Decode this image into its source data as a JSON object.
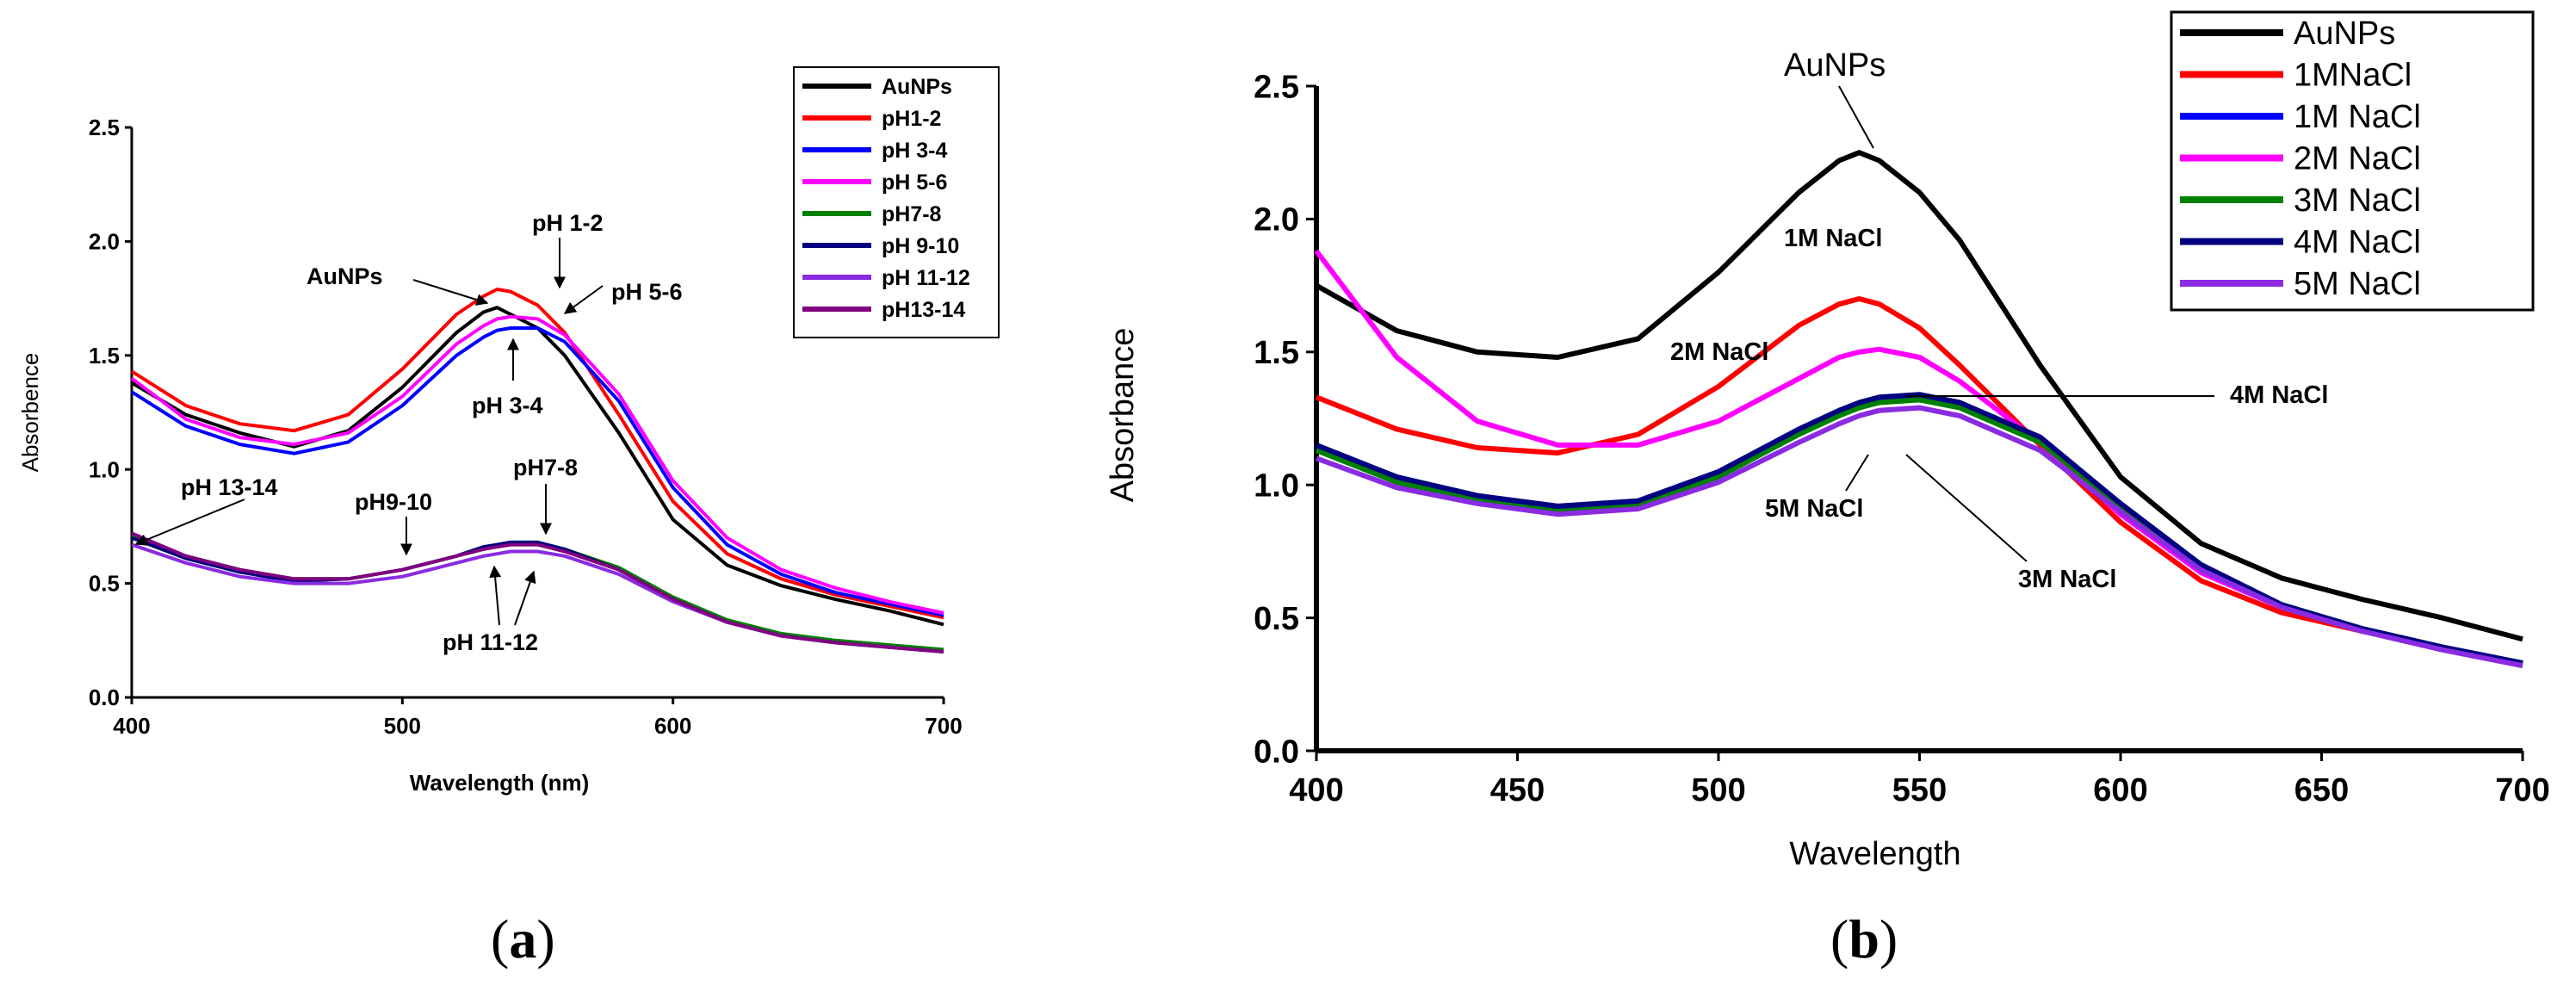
{
  "chart_data": [
    {
      "panel": "a",
      "type": "line",
      "title": "",
      "xlabel": "Wavelength (nm)",
      "ylabel": "Absorbence",
      "xlim": [
        400,
        700
      ],
      "ylim": [
        0.0,
        2.5
      ],
      "xticks": [
        "400",
        "500",
        "600",
        "700"
      ],
      "yticks": [
        "0.0",
        "0.5",
        "1.0",
        "1.5",
        "2.0",
        "2.5"
      ],
      "legend_position": "top-right",
      "x": [
        400,
        420,
        440,
        460,
        480,
        500,
        520,
        530,
        535,
        540,
        550,
        560,
        580,
        600,
        620,
        640,
        660,
        680,
        700
      ],
      "series": [
        {
          "name": "AuNPs",
          "color": "#000000",
          "values": [
            1.38,
            1.24,
            1.16,
            1.1,
            1.17,
            1.36,
            1.6,
            1.69,
            1.71,
            1.68,
            1.62,
            1.5,
            1.16,
            0.78,
            0.58,
            0.49,
            0.43,
            0.38,
            0.32
          ]
        },
        {
          "name": "pH1-2",
          "color": "#ff0000",
          "values": [
            1.43,
            1.28,
            1.2,
            1.17,
            1.24,
            1.44,
            1.68,
            1.76,
            1.79,
            1.78,
            1.72,
            1.6,
            1.24,
            0.86,
            0.63,
            0.52,
            0.45,
            0.4,
            0.35
          ]
        },
        {
          "name": "pH 3-4",
          "color": "#0000ff",
          "values": [
            1.34,
            1.19,
            1.11,
            1.07,
            1.12,
            1.28,
            1.5,
            1.58,
            1.61,
            1.62,
            1.62,
            1.56,
            1.3,
            0.92,
            0.67,
            0.54,
            0.46,
            0.41,
            0.36
          ]
        },
        {
          "name": "pH 5-6",
          "color": "#ff00ff",
          "values": [
            1.4,
            1.22,
            1.14,
            1.11,
            1.16,
            1.32,
            1.55,
            1.63,
            1.66,
            1.67,
            1.66,
            1.59,
            1.33,
            0.95,
            0.7,
            0.56,
            0.48,
            0.42,
            0.37
          ]
        },
        {
          "name": "pH7-8",
          "color": "#008000",
          "values": [
            0.71,
            0.62,
            0.56,
            0.52,
            0.52,
            0.56,
            0.62,
            0.66,
            0.67,
            0.68,
            0.68,
            0.65,
            0.57,
            0.44,
            0.34,
            0.28,
            0.25,
            0.23,
            0.21
          ]
        },
        {
          "name": "pH 9-10",
          "color": "#000080",
          "values": [
            0.7,
            0.61,
            0.55,
            0.51,
            0.52,
            0.56,
            0.62,
            0.66,
            0.67,
            0.68,
            0.68,
            0.65,
            0.56,
            0.43,
            0.33,
            0.27,
            0.24,
            0.22,
            0.2
          ]
        },
        {
          "name": "pH 11-12",
          "color": "#8a2be2",
          "values": [
            0.67,
            0.59,
            0.53,
            0.5,
            0.5,
            0.53,
            0.59,
            0.62,
            0.63,
            0.64,
            0.64,
            0.62,
            0.54,
            0.42,
            0.33,
            0.27,
            0.24,
            0.22,
            0.2
          ]
        },
        {
          "name": "pH13-14",
          "color": "#800080",
          "values": [
            0.72,
            0.62,
            0.56,
            0.52,
            0.52,
            0.56,
            0.62,
            0.65,
            0.66,
            0.67,
            0.67,
            0.64,
            0.56,
            0.43,
            0.33,
            0.27,
            0.24,
            0.22,
            0.2
          ]
        }
      ],
      "annotations": [
        "AuNPs",
        "pH 1-2",
        "pH 5-6",
        "pH 3-4",
        "pH 13-14",
        "pH9-10",
        "pH7-8",
        "pH 11-12"
      ]
    },
    {
      "panel": "b",
      "type": "line",
      "title": "",
      "xlabel": "Wavelength",
      "ylabel": "Absorbance",
      "xlim": [
        400,
        700
      ],
      "ylim": [
        0.0,
        2.5
      ],
      "xticks": [
        "400",
        "450",
        "500",
        "550",
        "600",
        "650",
        "700"
      ],
      "yticks": [
        "0.0",
        "0.5",
        "1.0",
        "1.5",
        "2.0",
        "2.5"
      ],
      "legend_position": "top-right",
      "x": [
        400,
        420,
        440,
        460,
        480,
        500,
        520,
        530,
        535,
        540,
        550,
        560,
        580,
        600,
        620,
        640,
        660,
        680,
        700
      ],
      "series": [
        {
          "name": "AuNPs",
          "color": "#000000",
          "values": [
            1.75,
            1.58,
            1.5,
            1.48,
            1.55,
            1.8,
            2.1,
            2.22,
            2.25,
            2.22,
            2.1,
            1.92,
            1.45,
            1.03,
            0.78,
            0.65,
            0.57,
            0.5,
            0.42
          ]
        },
        {
          "name": "1MNaCl",
          "color": "#ff0000",
          "values": [
            1.33,
            1.21,
            1.14,
            1.12,
            1.19,
            1.37,
            1.6,
            1.68,
            1.7,
            1.68,
            1.59,
            1.45,
            1.15,
            0.86,
            0.64,
            0.52,
            0.45,
            0.39,
            0.33
          ]
        },
        {
          "name": "1M NaCl",
          "color": "#0000ff",
          "values": [
            1.14,
            1.02,
            0.95,
            0.91,
            0.93,
            1.04,
            1.2,
            1.27,
            1.3,
            1.32,
            1.33,
            1.3,
            1.17,
            0.93,
            0.7,
            0.55,
            0.46,
            0.39,
            0.33
          ]
        },
        {
          "name": "2M NaCl",
          "color": "#ff00ff",
          "values": [
            1.88,
            1.48,
            1.24,
            1.15,
            1.15,
            1.24,
            1.4,
            1.48,
            1.5,
            1.51,
            1.48,
            1.39,
            1.16,
            0.89,
            0.67,
            0.54,
            0.46,
            0.39,
            0.33
          ]
        },
        {
          "name": "3M NaCl",
          "color": "#008000",
          "values": [
            1.13,
            1.01,
            0.94,
            0.9,
            0.92,
            1.03,
            1.19,
            1.26,
            1.29,
            1.31,
            1.32,
            1.29,
            1.16,
            0.92,
            0.69,
            0.55,
            0.46,
            0.39,
            0.33
          ]
        },
        {
          "name": "4M NaCl",
          "color": "#000080",
          "values": [
            1.15,
            1.03,
            0.96,
            0.92,
            0.94,
            1.05,
            1.21,
            1.28,
            1.31,
            1.33,
            1.34,
            1.31,
            1.18,
            0.93,
            0.7,
            0.55,
            0.46,
            0.39,
            0.33
          ]
        },
        {
          "name": "5M NaCl",
          "color": "#8a2be2",
          "values": [
            1.1,
            0.99,
            0.93,
            0.89,
            0.91,
            1.01,
            1.16,
            1.23,
            1.26,
            1.28,
            1.29,
            1.26,
            1.13,
            0.9,
            0.68,
            0.54,
            0.45,
            0.38,
            0.32
          ]
        }
      ],
      "annotations": [
        "AuNPs",
        "1M NaCl",
        "2M NaCl",
        "4M NaCl",
        "5M NaCl",
        "3M NaCl"
      ]
    }
  ],
  "panel_labels": {
    "a": "(a)",
    "b": "(b)",
    "a_letter": "a",
    "b_letter": "b"
  }
}
